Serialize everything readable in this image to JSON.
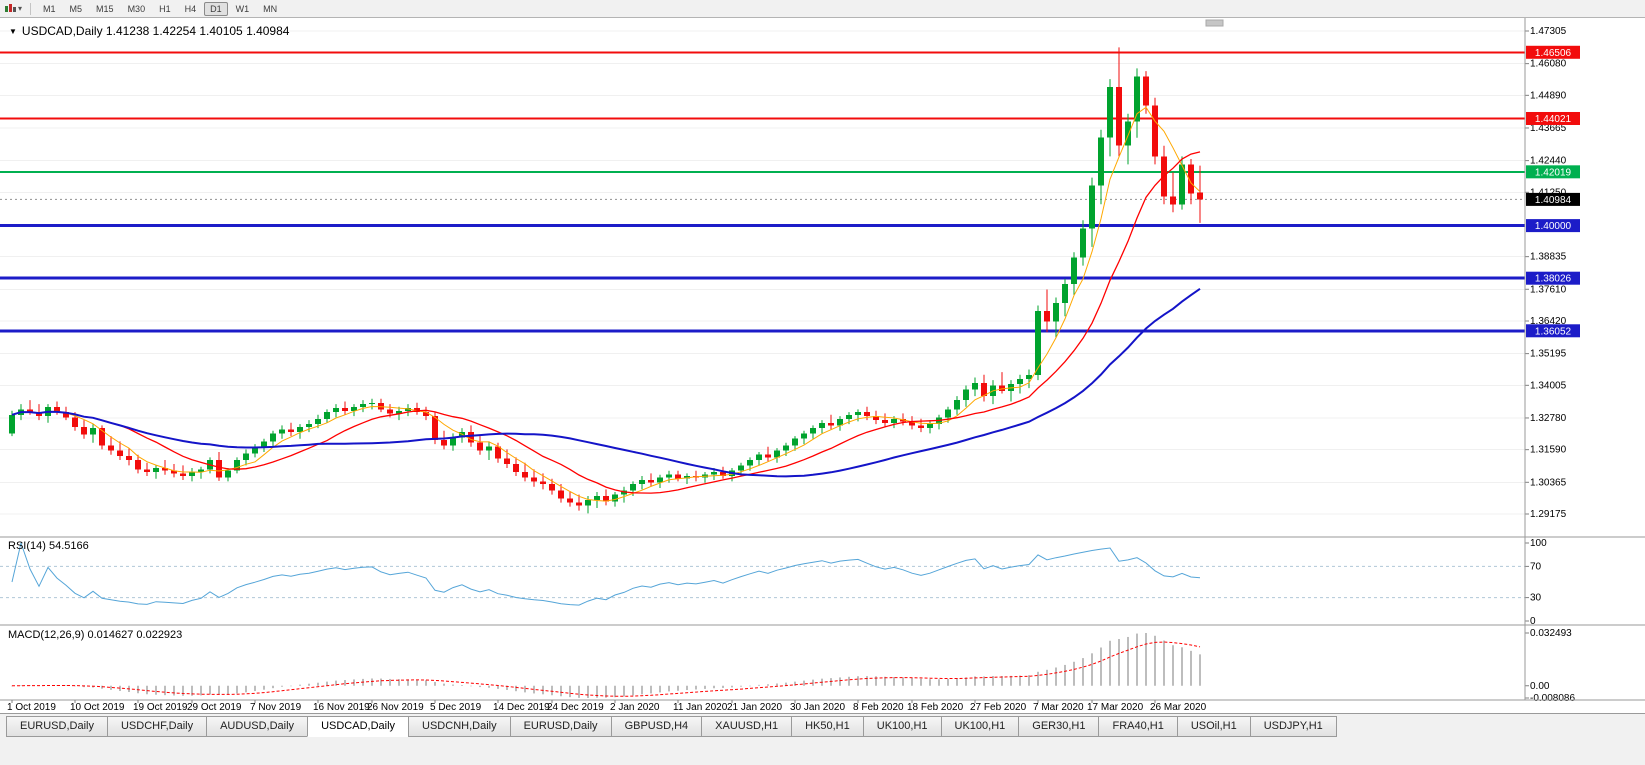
{
  "toolbar": {
    "timeframes": [
      "M1",
      "M5",
      "M15",
      "M30",
      "H1",
      "H4",
      "D1",
      "W1",
      "MN"
    ],
    "active_timeframe": "D1"
  },
  "chart": {
    "title": "USDCAD,Daily 1.41238 1.42254 1.40105 1.40984",
    "symbol": "USDCAD",
    "period": "Daily",
    "open": "1.41238",
    "high": "1.42254",
    "low": "1.40105",
    "close": "1.40984"
  },
  "price_axis": {
    "ticks": [
      "1.47305",
      "1.46080",
      "1.44890",
      "1.43665",
      "1.42440",
      "1.41250",
      "1.38835",
      "1.37610",
      "1.36420",
      "1.35195",
      "1.34005",
      "1.32780",
      "1.31590",
      "1.30365",
      "1.29175"
    ]
  },
  "levels": [
    {
      "label": "1.46506",
      "price": 1.46506,
      "color": "#f20c0c",
      "line_width": 2,
      "role": "resistance"
    },
    {
      "label": "1.44021",
      "price": 1.44021,
      "color": "#f20c0c",
      "line_width": 2,
      "role": "resistance"
    },
    {
      "label": "1.42019",
      "price": 1.42019,
      "color": "#00b050",
      "line_width": 2,
      "role": "pivot"
    },
    {
      "label": "1.40000",
      "price": 1.4,
      "color": "#1c1cc8",
      "line_width": 3,
      "role": "support"
    },
    {
      "label": "1.38026",
      "price": 1.38026,
      "color": "#1c1cc8",
      "line_width": 3,
      "role": "support"
    },
    {
      "label": "1.36052",
      "price": 1.36052,
      "color": "#1c1cc8",
      "line_width": 3,
      "role": "support"
    }
  ],
  "current_price": {
    "label": "1.40984",
    "price": 1.40984,
    "badge_color": "#000000"
  },
  "time_axis": {
    "ticks": [
      {
        "label": "1 Oct 2019",
        "index": 0
      },
      {
        "label": "10 Oct 2019",
        "index": 7
      },
      {
        "label": "19 Oct 2019",
        "index": 14
      },
      {
        "label": "29 Oct 2019",
        "index": 20
      },
      {
        "label": "7 Nov 2019",
        "index": 27
      },
      {
        "label": "16 Nov 2019",
        "index": 34
      },
      {
        "label": "26 Nov 2019",
        "index": 40
      },
      {
        "label": "5 Dec 2019",
        "index": 47
      },
      {
        "label": "14 Dec 2019",
        "index": 54
      },
      {
        "label": "24 Dec 2019",
        "index": 60
      },
      {
        "label": "2 Jan 2020",
        "index": 67
      },
      {
        "label": "11 Jan 2020",
        "index": 74
      },
      {
        "label": "21 Jan 2020",
        "index": 80
      },
      {
        "label": "30 Jan 2020",
        "index": 87
      },
      {
        "label": "8 Feb 2020",
        "index": 94
      },
      {
        "label": "18 Feb 2020",
        "index": 100
      },
      {
        "label": "27 Feb 2020",
        "index": 107
      },
      {
        "label": "7 Mar 2020",
        "index": 114
      },
      {
        "label": "17 Mar 2020",
        "index": 120
      },
      {
        "label": "26 Mar 2020",
        "index": 127
      }
    ]
  },
  "chart_data": {
    "type": "candlestick",
    "symbol": "USDCAD",
    "timeframe": "Daily",
    "price_range": {
      "top": 1.47305,
      "bottom": 1.29175
    },
    "colors": {
      "up": "#00a32e",
      "down": "#f20c0c"
    },
    "moving_averages": [
      {
        "period": 5,
        "color": "#ffa800",
        "width": 1
      },
      {
        "period": 13,
        "color": "#ff0000",
        "width": 1.3
      },
      {
        "period": 35,
        "color": "#1414c8",
        "width": 2
      }
    ],
    "candles": [
      [
        1.322,
        1.3305,
        1.321,
        1.329
      ],
      [
        1.329,
        1.333,
        1.327,
        1.331
      ],
      [
        1.331,
        1.3345,
        1.329,
        1.33
      ],
      [
        1.33,
        1.333,
        1.327,
        1.3285
      ],
      [
        1.3285,
        1.333,
        1.326,
        1.332
      ],
      [
        1.332,
        1.334,
        1.329,
        1.33
      ],
      [
        1.33,
        1.332,
        1.327,
        1.328
      ],
      [
        1.328,
        1.33,
        1.323,
        1.3245
      ],
      [
        1.3245,
        1.327,
        1.32,
        1.3215
      ],
      [
        1.3215,
        1.3255,
        1.3185,
        1.324
      ],
      [
        1.324,
        1.325,
        1.316,
        1.3175
      ],
      [
        1.3175,
        1.321,
        1.314,
        1.3155
      ],
      [
        1.3155,
        1.319,
        1.312,
        1.3135
      ],
      [
        1.3135,
        1.3165,
        1.31,
        1.312
      ],
      [
        1.312,
        1.314,
        1.307,
        1.3085
      ],
      [
        1.3085,
        1.311,
        1.306,
        1.3075
      ],
      [
        1.3075,
        1.31,
        1.305,
        1.309
      ],
      [
        1.309,
        1.312,
        1.3065,
        1.308
      ],
      [
        1.308,
        1.3105,
        1.3055,
        1.307
      ],
      [
        1.307,
        1.31,
        1.3045,
        1.306
      ],
      [
        1.306,
        1.309,
        1.304,
        1.3075
      ],
      [
        1.3075,
        1.3095,
        1.305,
        1.3085
      ],
      [
        1.3085,
        1.313,
        1.307,
        1.312
      ],
      [
        1.312,
        1.315,
        1.3042,
        1.3055
      ],
      [
        1.3055,
        1.309,
        1.304,
        1.308
      ],
      [
        1.308,
        1.313,
        1.307,
        1.312
      ],
      [
        1.312,
        1.316,
        1.31,
        1.3145
      ],
      [
        1.3145,
        1.318,
        1.313,
        1.3165
      ],
      [
        1.3165,
        1.32,
        1.315,
        1.319
      ],
      [
        1.319,
        1.323,
        1.317,
        1.322
      ],
      [
        1.322,
        1.325,
        1.32,
        1.3235
      ],
      [
        1.3235,
        1.326,
        1.321,
        1.3225
      ],
      [
        1.3225,
        1.3255,
        1.32,
        1.3245
      ],
      [
        1.3245,
        1.327,
        1.3225,
        1.3255
      ],
      [
        1.3255,
        1.329,
        1.324,
        1.3275
      ],
      [
        1.3275,
        1.331,
        1.326,
        1.33
      ],
      [
        1.33,
        1.333,
        1.328,
        1.3315
      ],
      [
        1.3315,
        1.334,
        1.329,
        1.3305
      ],
      [
        1.3305,
        1.333,
        1.3285,
        1.332
      ],
      [
        1.332,
        1.3345,
        1.33,
        1.333
      ],
      [
        1.333,
        1.335,
        1.331,
        1.3335
      ],
      [
        1.3335,
        1.335,
        1.33,
        1.331
      ],
      [
        1.331,
        1.333,
        1.328,
        1.3295
      ],
      [
        1.3295,
        1.332,
        1.327,
        1.3305
      ],
      [
        1.3305,
        1.333,
        1.3285,
        1.3315
      ],
      [
        1.3315,
        1.3335,
        1.329,
        1.33
      ],
      [
        1.33,
        1.332,
        1.327,
        1.3285
      ],
      [
        1.3285,
        1.33,
        1.318,
        1.3195
      ],
      [
        1.3195,
        1.323,
        1.316,
        1.3175
      ],
      [
        1.3175,
        1.322,
        1.3155,
        1.3205
      ],
      [
        1.3205,
        1.324,
        1.3185,
        1.3225
      ],
      [
        1.3225,
        1.325,
        1.317,
        1.3185
      ],
      [
        1.3185,
        1.321,
        1.314,
        1.3155
      ],
      [
        1.3155,
        1.319,
        1.312,
        1.317
      ],
      [
        1.317,
        1.3185,
        1.311,
        1.3125
      ],
      [
        1.3125,
        1.316,
        1.309,
        1.3105
      ],
      [
        1.3105,
        1.313,
        1.306,
        1.3075
      ],
      [
        1.3075,
        1.311,
        1.304,
        1.3055
      ],
      [
        1.3055,
        1.3085,
        1.302,
        1.304
      ],
      [
        1.304,
        1.307,
        1.301,
        1.303
      ],
      [
        1.303,
        1.305,
        1.299,
        1.3005
      ],
      [
        1.3005,
        1.303,
        1.296,
        1.2975
      ],
      [
        1.2975,
        1.3,
        1.2945,
        1.296
      ],
      [
        1.296,
        1.299,
        1.293,
        1.295
      ],
      [
        1.295,
        1.2985,
        1.292,
        1.297
      ],
      [
        1.297,
        1.3,
        1.294,
        1.2985
      ],
      [
        1.2985,
        1.301,
        1.295,
        1.2965
      ],
      [
        1.2965,
        1.3,
        1.2945,
        1.299
      ],
      [
        1.299,
        1.302,
        1.296,
        1.3005
      ],
      [
        1.3005,
        1.304,
        1.2985,
        1.303
      ],
      [
        1.303,
        1.306,
        1.301,
        1.3045
      ],
      [
        1.3045,
        1.307,
        1.302,
        1.3035
      ],
      [
        1.3035,
        1.3065,
        1.3015,
        1.3055
      ],
      [
        1.3055,
        1.308,
        1.3035,
        1.3065
      ],
      [
        1.3065,
        1.308,
        1.304,
        1.305
      ],
      [
        1.305,
        1.307,
        1.303,
        1.306
      ],
      [
        1.306,
        1.308,
        1.304,
        1.3055
      ],
      [
        1.3055,
        1.3075,
        1.3035,
        1.3065
      ],
      [
        1.3065,
        1.309,
        1.3045,
        1.3075
      ],
      [
        1.3075,
        1.3095,
        1.305,
        1.306
      ],
      [
        1.306,
        1.309,
        1.304,
        1.308
      ],
      [
        1.308,
        1.311,
        1.306,
        1.31
      ],
      [
        1.31,
        1.313,
        1.308,
        1.312
      ],
      [
        1.312,
        1.315,
        1.31,
        1.314
      ],
      [
        1.314,
        1.317,
        1.3115,
        1.313
      ],
      [
        1.313,
        1.3165,
        1.311,
        1.3155
      ],
      [
        1.3155,
        1.3185,
        1.3135,
        1.3175
      ],
      [
        1.3175,
        1.321,
        1.3155,
        1.32
      ],
      [
        1.32,
        1.323,
        1.318,
        1.322
      ],
      [
        1.322,
        1.325,
        1.32,
        1.324
      ],
      [
        1.324,
        1.327,
        1.322,
        1.326
      ],
      [
        1.326,
        1.329,
        1.3235,
        1.325
      ],
      [
        1.325,
        1.3285,
        1.323,
        1.3275
      ],
      [
        1.3275,
        1.33,
        1.3255,
        1.329
      ],
      [
        1.329,
        1.331,
        1.3265,
        1.33
      ],
      [
        1.33,
        1.332,
        1.327,
        1.3285
      ],
      [
        1.3285,
        1.3305,
        1.3255,
        1.327
      ],
      [
        1.327,
        1.3295,
        1.3245,
        1.326
      ],
      [
        1.326,
        1.3285,
        1.324,
        1.3275
      ],
      [
        1.3275,
        1.3295,
        1.325,
        1.3265
      ],
      [
        1.3265,
        1.3285,
        1.3235,
        1.325
      ],
      [
        1.325,
        1.3275,
        1.3225,
        1.324
      ],
      [
        1.324,
        1.327,
        1.322,
        1.3255
      ],
      [
        1.3255,
        1.329,
        1.3235,
        1.328
      ],
      [
        1.328,
        1.332,
        1.326,
        1.331
      ],
      [
        1.331,
        1.336,
        1.329,
        1.3345
      ],
      [
        1.3345,
        1.34,
        1.332,
        1.3385
      ],
      [
        1.3385,
        1.343,
        1.336,
        1.341
      ],
      [
        1.341,
        1.344,
        1.334,
        1.336
      ],
      [
        1.336,
        1.342,
        1.333,
        1.34
      ],
      [
        1.34,
        1.345,
        1.337,
        1.338
      ],
      [
        1.338,
        1.342,
        1.334,
        1.3405
      ],
      [
        1.3405,
        1.344,
        1.337,
        1.3425
      ],
      [
        1.3425,
        1.346,
        1.339,
        1.344
      ],
      [
        1.344,
        1.37,
        1.342,
        1.368
      ],
      [
        1.368,
        1.376,
        1.36,
        1.364
      ],
      [
        1.364,
        1.373,
        1.358,
        1.371
      ],
      [
        1.371,
        1.38,
        1.366,
        1.378
      ],
      [
        1.378,
        1.39,
        1.374,
        1.388
      ],
      [
        1.388,
        1.402,
        1.385,
        1.399
      ],
      [
        1.399,
        1.418,
        1.392,
        1.415
      ],
      [
        1.415,
        1.436,
        1.408,
        1.433
      ],
      [
        1.433,
        1.455,
        1.426,
        1.452
      ],
      [
        1.452,
        1.4669,
        1.426,
        1.43
      ],
      [
        1.43,
        1.442,
        1.423,
        1.439
      ],
      [
        1.439,
        1.459,
        1.433,
        1.456
      ],
      [
        1.456,
        1.458,
        1.442,
        1.445
      ],
      [
        1.445,
        1.448,
        1.423,
        1.426
      ],
      [
        1.426,
        1.43,
        1.408,
        1.411
      ],
      [
        1.411,
        1.42,
        1.405,
        1.408
      ],
      [
        1.408,
        1.426,
        1.406,
        1.423
      ],
      [
        1.423,
        1.425,
        1.408,
        1.412
      ],
      [
        1.41238,
        1.42254,
        1.40105,
        1.40984
      ]
    ]
  },
  "rsi": {
    "label": "RSI(14) 54.5166",
    "period": 14,
    "value": "54.5166",
    "color": "#55a5d8",
    "level_line_color": "#b0c8d8",
    "levels": [
      {
        "label": "100",
        "value": 100
      },
      {
        "label": "70",
        "value": 70
      },
      {
        "label": "30",
        "value": 30
      },
      {
        "label": "0",
        "value": 0
      }
    ]
  },
  "macd": {
    "label": "MACD(12,26,9) 0.014627 0.022923",
    "fast": 12,
    "slow": 26,
    "signal": 9,
    "values": [
      "0.014627",
      "0.022923"
    ],
    "histogram_color": "#bdbdbd",
    "signal_color": "#ff0000",
    "axis": [
      {
        "label": "0.032493",
        "pos": "max"
      },
      {
        "label": "0.00",
        "pos": "zero"
      },
      {
        "label": "-0.008086",
        "pos": "min"
      }
    ]
  },
  "tabs": {
    "items": [
      "EURUSD,Daily",
      "USDCHF,Daily",
      "AUDUSD,Daily",
      "USDCAD,Daily",
      "USDCNH,Daily",
      "EURUSD,Daily",
      "GBPUSD,H4",
      "XAUUSD,H1",
      "HK50,H1",
      "UK100,H1",
      "UK100,H1",
      "GER30,H1",
      "FRA40,H1",
      "USOil,H1",
      "USDJPY,H1"
    ],
    "active_index": 3
  }
}
